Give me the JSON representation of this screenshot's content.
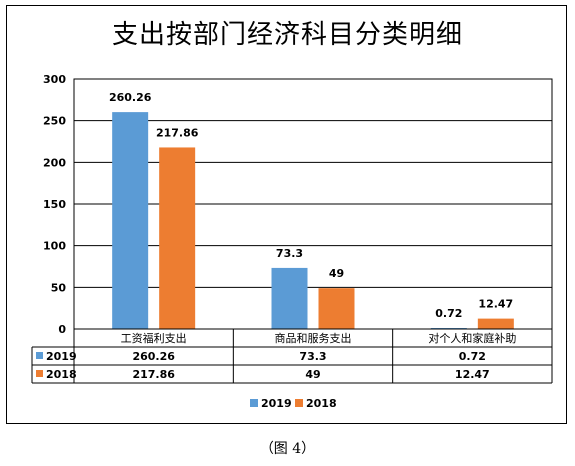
{
  "chart_data": {
    "type": "bar",
    "title": "支出按部门经济科目分类明细",
    "categories": [
      "工资福利支出",
      "商品和服务支出",
      "对个人和家庭补助"
    ],
    "series": [
      {
        "name": "2019",
        "color": "#5B9BD5",
        "values": [
          260.26,
          73.3,
          0.72
        ],
        "labels": [
          "260.26",
          "73.3",
          "0.72"
        ]
      },
      {
        "name": "2018",
        "color": "#ED7D31",
        "values": [
          217.86,
          49,
          12.47
        ],
        "labels": [
          "217.86",
          "49",
          "12.47"
        ]
      }
    ],
    "ylim": [
      0,
      300
    ],
    "yticks": [
      "0",
      "50",
      "100",
      "150",
      "200",
      "250",
      "300"
    ],
    "grid": true,
    "legend": "bottom",
    "data_table": true
  },
  "caption": "（图 4）"
}
